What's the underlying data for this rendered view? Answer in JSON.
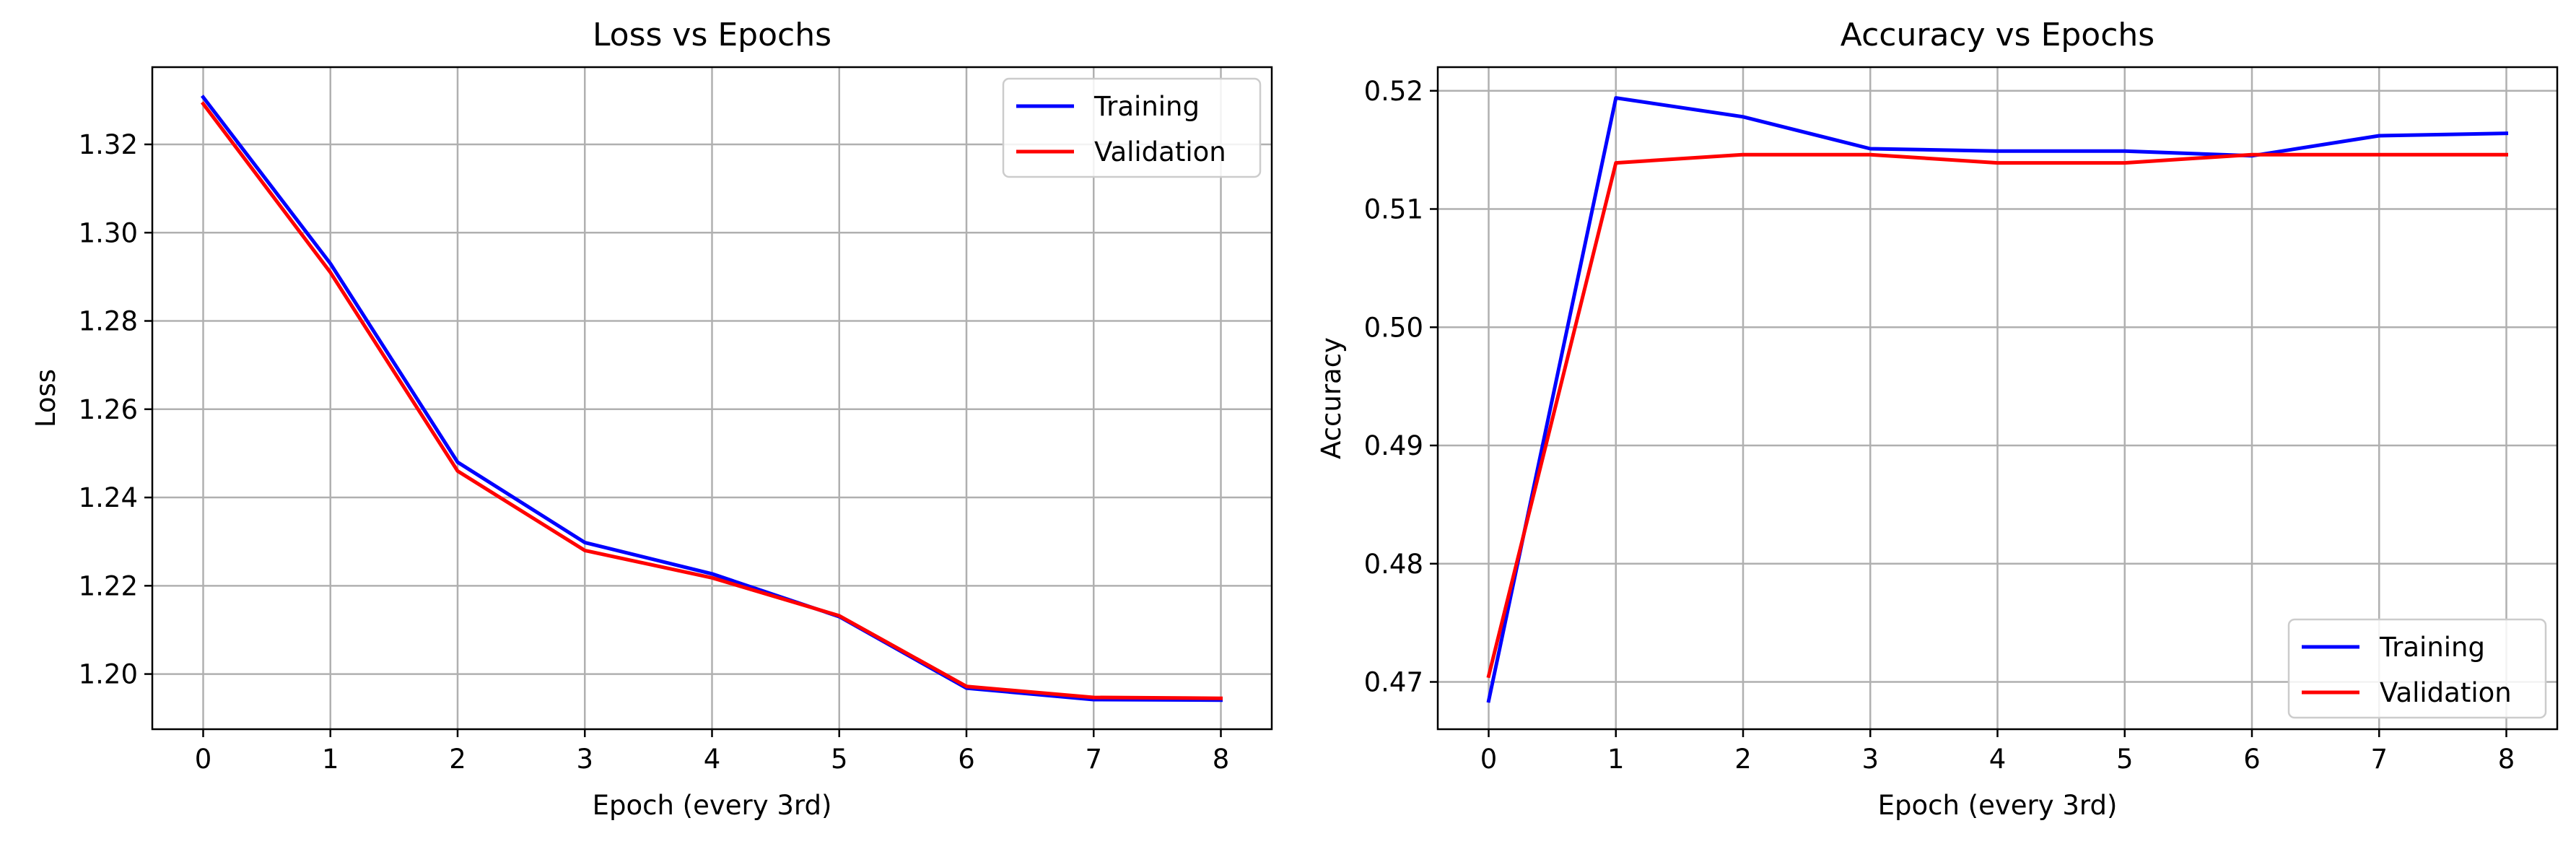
{
  "chart_data": [
    {
      "type": "line",
      "title": "Loss vs Epochs",
      "xlabel": "Epoch (every 3rd)",
      "ylabel": "Loss",
      "x": [
        0,
        1,
        2,
        3,
        4,
        5,
        6,
        7,
        8
      ],
      "xticks": [
        "0",
        "1",
        "2",
        "3",
        "4",
        "5",
        "6",
        "7",
        "8"
      ],
      "yticks": [
        "1.20",
        "1.22",
        "1.24",
        "1.26",
        "1.28",
        "1.30",
        "1.32"
      ],
      "xlim": [
        -0.4,
        8.4
      ],
      "ylim": [
        1.1875,
        1.3375
      ],
      "grid": true,
      "legend_position": "upper right",
      "series": [
        {
          "name": "Training",
          "color": "#0000ff",
          "values": [
            1.3307,
            1.293,
            1.248,
            1.2298,
            1.2227,
            1.213,
            1.1968,
            1.1942,
            1.1941
          ]
        },
        {
          "name": "Validation",
          "color": "#ff0000",
          "values": [
            1.3292,
            1.291,
            1.246,
            1.228,
            1.2218,
            1.2132,
            1.1972,
            1.1947,
            1.1945
          ]
        }
      ]
    },
    {
      "type": "line",
      "title": "Accuracy vs Epochs",
      "xlabel": "Epoch (every 3rd)",
      "ylabel": "Accuracy",
      "x": [
        0,
        1,
        2,
        3,
        4,
        5,
        6,
        7,
        8
      ],
      "xticks": [
        "0",
        "1",
        "2",
        "3",
        "4",
        "5",
        "6",
        "7",
        "8"
      ],
      "yticks": [
        "0.47",
        "0.48",
        "0.49",
        "0.50",
        "0.51",
        "0.52"
      ],
      "xlim": [
        -0.4,
        8.4
      ],
      "ylim": [
        0.466,
        0.522
      ],
      "grid": true,
      "legend_position": "lower right",
      "series": [
        {
          "name": "Training",
          "color": "#0000ff",
          "values": [
            0.4684,
            0.5194,
            0.5178,
            0.5151,
            0.5149,
            0.5149,
            0.5145,
            0.5162,
            0.5164
          ]
        },
        {
          "name": "Validation",
          "color": "#ff0000",
          "values": [
            0.4705,
            0.5139,
            0.5146,
            0.5146,
            0.5139,
            0.5139,
            0.5146,
            0.5146,
            0.5146
          ]
        }
      ]
    }
  ]
}
